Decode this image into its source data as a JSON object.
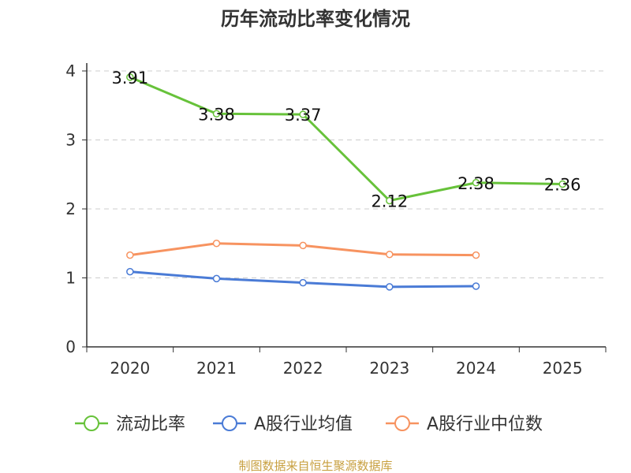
{
  "chart_data": {
    "type": "line",
    "title": "历年流动比率变化情况",
    "categories": [
      "2020",
      "2021",
      "2022",
      "2023",
      "2024",
      "2025"
    ],
    "yticks": [
      "0",
      "1",
      "2",
      "3",
      "4"
    ],
    "ylim": [
      0,
      4
    ],
    "grid": true,
    "legend_position": "bottom",
    "series": [
      {
        "name": "流动比率",
        "color": "#67c23a",
        "show_labels": true,
        "values": [
          3.91,
          3.38,
          3.37,
          2.12,
          2.38,
          2.36
        ],
        "labels": [
          "3.91",
          "3.38",
          "3.37",
          "2.12",
          "2.38",
          "2.36"
        ]
      },
      {
        "name": "A股行业均值",
        "color": "#4a7bd6",
        "show_labels": false,
        "values": [
          1.09,
          0.99,
          0.93,
          0.87,
          0.88,
          null
        ]
      },
      {
        "name": "A股行业中位数",
        "color": "#f79360",
        "show_labels": false,
        "values": [
          1.33,
          1.5,
          1.47,
          1.34,
          1.33,
          null
        ]
      }
    ],
    "source": "制图数据来自恒生聚源数据库"
  }
}
